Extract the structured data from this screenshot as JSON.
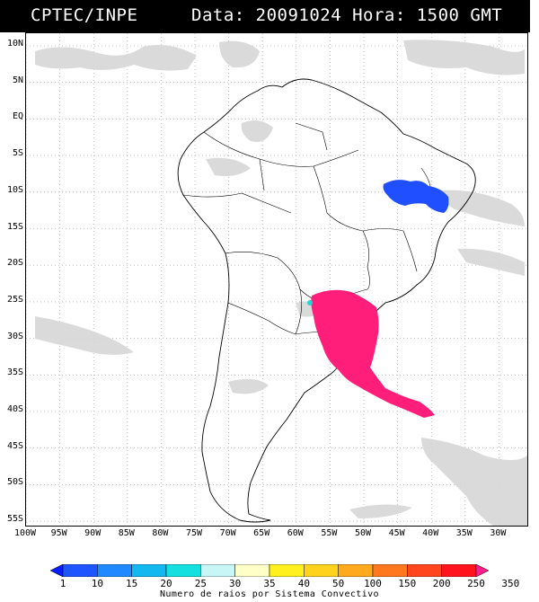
{
  "header": {
    "source": "CPTEC/INPE",
    "datetime": "Data: 20091024 Hora: 1500 GMT"
  },
  "map": {
    "lat_labels": [
      "10N",
      "5N",
      "EQ",
      "5S",
      "10S",
      "15S",
      "20S",
      "25S",
      "30S",
      "35S",
      "40S",
      "45S",
      "50S",
      "55S"
    ],
    "lon_labels": [
      "100W",
      "95W",
      "90W",
      "85W",
      "80W",
      "75W",
      "70W",
      "65W",
      "60W",
      "55W",
      "50W",
      "45W",
      "40W",
      "35W",
      "30W"
    ],
    "grid": "dotted",
    "layers": {
      "background": "satellite-cloud-gray",
      "outlines": "country-and-state-borders",
      "convective_systems": [
        {
          "region": "southern-brazil-uruguay-argentina",
          "color": "#ff1f7a",
          "class": "350"
        },
        {
          "region": "eastern-bahia",
          "color": "#1f4fff",
          "class": "10"
        },
        {
          "region": "paraguay-border",
          "color": "#22d4d4",
          "class": "25"
        }
      ]
    }
  },
  "colorbar": {
    "labels": [
      "1",
      "10",
      "15",
      "20",
      "25",
      "30",
      "35",
      "40",
      "50",
      "100",
      "150",
      "200",
      "250",
      "350"
    ],
    "colors": [
      "#0a1eff",
      "#1f55ff",
      "#1f8aff",
      "#14b8f0",
      "#14e0e0",
      "#c8f5f5",
      "#ffffc8",
      "#fff01e",
      "#ffd21e",
      "#ffaa1e",
      "#ff781e",
      "#ff461e",
      "#ff141e",
      "#ff1f8c"
    ],
    "caption": "Numero de raios por Sistema Convectivo"
  }
}
